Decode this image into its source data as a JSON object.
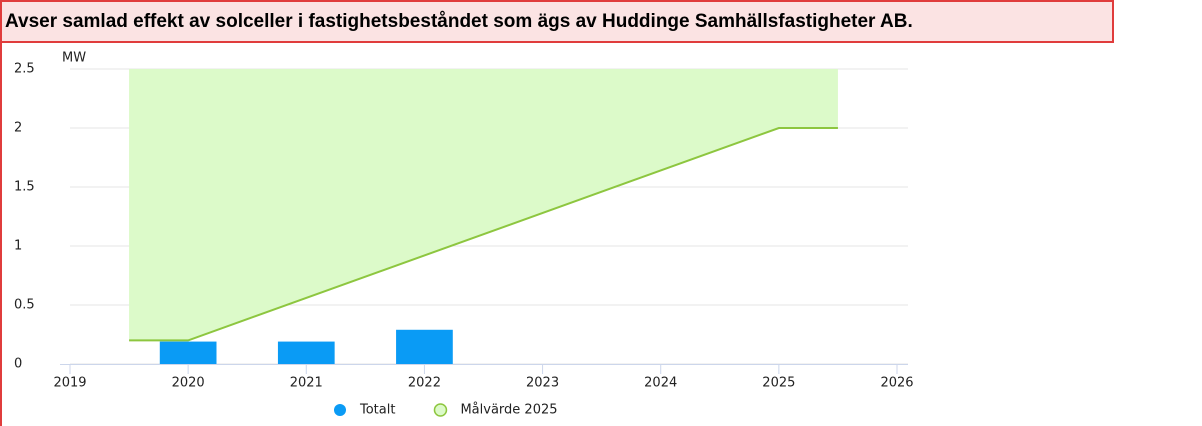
{
  "title": "Avser samlad effekt av solceller i fastighetsbeståndet som ägs av Huddinge Samhällsfastigheter AB.",
  "chart_data": {
    "type": "bar_area",
    "y_label": "MW",
    "xlim": [
      2019,
      2026
    ],
    "xticks": [
      2019,
      2020,
      2021,
      2022,
      2023,
      2024,
      2025,
      2026
    ],
    "ylim": [
      0,
      2.5
    ],
    "yticks": [
      0,
      0.5,
      1,
      1.5,
      2,
      2.5
    ],
    "grid": true,
    "series": [
      {
        "name": "Totalt",
        "type": "bar",
        "color": "#0a9bf5",
        "x": [
          2020,
          2021,
          2022
        ],
        "values": [
          0.19,
          0.19,
          0.29
        ]
      },
      {
        "name": "Målvärde 2025",
        "type": "arearange",
        "color": "#8dc63f",
        "fill": "#dcfac9",
        "x": [
          2019.5,
          2020,
          2025,
          2025.5
        ],
        "values": [
          0.2,
          0.2,
          2,
          2
        ],
        "high": [
          2.5,
          2.5,
          2.5,
          2.5
        ]
      }
    ]
  }
}
